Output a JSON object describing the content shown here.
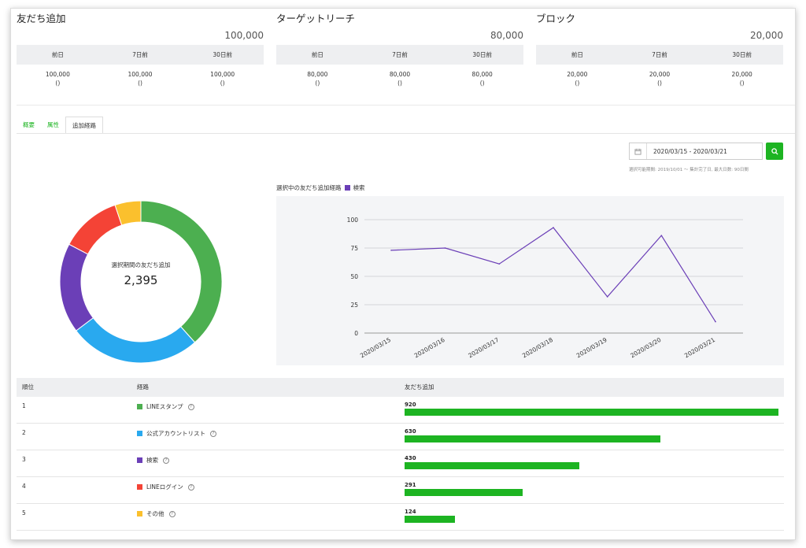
{
  "stats": [
    {
      "title": "友だち追加",
      "total": "100,000",
      "headers": [
        "前日",
        "7日前",
        "30日前"
      ],
      "values": [
        "100,000",
        "100,000",
        "100,000"
      ],
      "sub": [
        "()",
        "()",
        "()"
      ]
    },
    {
      "title": "ターゲットリーチ",
      "total": "80,000",
      "headers": [
        "前日",
        "7日前",
        "30日前"
      ],
      "values": [
        "80,000",
        "80,000",
        "80,000"
      ],
      "sub": [
        "()",
        "()",
        "()"
      ]
    },
    {
      "title": "ブロック",
      "total": "20,000",
      "headers": [
        "前日",
        "7日前",
        "30日前"
      ],
      "values": [
        "20,000",
        "20,000",
        "20,000"
      ],
      "sub": [
        "()",
        "()",
        "()"
      ]
    }
  ],
  "tabs": [
    "概要",
    "属性",
    "追加経路"
  ],
  "active_tab": "追加経路",
  "date_range": "2020/03/15 - 2020/03/21",
  "date_note": "選択可能期間: 2019/10/01 〜 集計完了日, 最大日数: 90日間",
  "donut": {
    "label": "選択期間の友だち追加",
    "total": "2,395",
    "segments": [
      {
        "name": "LINEスタンプ",
        "value": 920,
        "color": "#4caf50"
      },
      {
        "name": "公式アカウントリスト",
        "value": 630,
        "color": "#29a9ef"
      },
      {
        "name": "検索",
        "value": 430,
        "color": "#6b3fb7"
      },
      {
        "name": "LINEログイン",
        "value": 291,
        "color": "#f44336"
      },
      {
        "name": "その他",
        "value": 124,
        "color": "#fbc02d"
      }
    ]
  },
  "line_legend": {
    "label": "選択中の友だち追加経路",
    "series": "検索",
    "color": "#6b3fb7"
  },
  "chart_data": {
    "type": "line",
    "x": [
      "2020/03/15",
      "2020/03/16",
      "2020/03/17",
      "2020/03/18",
      "2020/03/19",
      "2020/03/20",
      "2020/03/21"
    ],
    "series": [
      {
        "name": "検索",
        "values": [
          73,
          75,
          61,
          93,
          32,
          86,
          10
        ]
      }
    ],
    "yticks": [
      0,
      25,
      50,
      75,
      100
    ],
    "ylim": [
      0,
      100
    ],
    "grid": true
  },
  "table": {
    "headers": [
      "順位",
      "経路",
      "友だち追加"
    ],
    "max": 920,
    "rows": [
      {
        "rank": "1",
        "route": "LINEスタンプ",
        "color": "#4caf50",
        "value": "920",
        "num": 920
      },
      {
        "rank": "2",
        "route": "公式アカウントリスト",
        "color": "#29a9ef",
        "value": "630",
        "num": 630
      },
      {
        "rank": "3",
        "route": "検索",
        "color": "#6b3fb7",
        "value": "430",
        "num": 430
      },
      {
        "rank": "4",
        "route": "LINEログイン",
        "color": "#f44336",
        "value": "291",
        "num": 291
      },
      {
        "rank": "5",
        "route": "その他",
        "color": "#fbc02d",
        "value": "124",
        "num": 124
      }
    ],
    "bar_color": "#1db422"
  },
  "icons": {
    "calendar": "calendar-icon",
    "search": "search-icon",
    "help": "help-circle-icon"
  }
}
